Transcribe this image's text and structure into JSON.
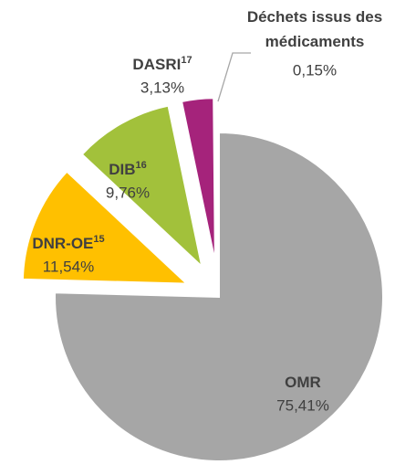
{
  "chart_data": {
    "type": "pie",
    "categories": [
      "OMR",
      "DNR-OE",
      "DIB",
      "DASRI",
      "Déchets issus des médicaments"
    ],
    "footnotes": [
      null,
      "15",
      "16",
      "17",
      null
    ],
    "values": [
      75.41,
      11.54,
      9.76,
      3.13,
      0.15
    ],
    "value_labels": [
      "75,41%",
      "11,54%",
      "9,76%",
      "3,13%",
      "0,15%"
    ],
    "colors": [
      "#a6a6a6",
      "#ffc000",
      "#a2c13b",
      "#a5237b",
      "#4472c4"
    ]
  }
}
